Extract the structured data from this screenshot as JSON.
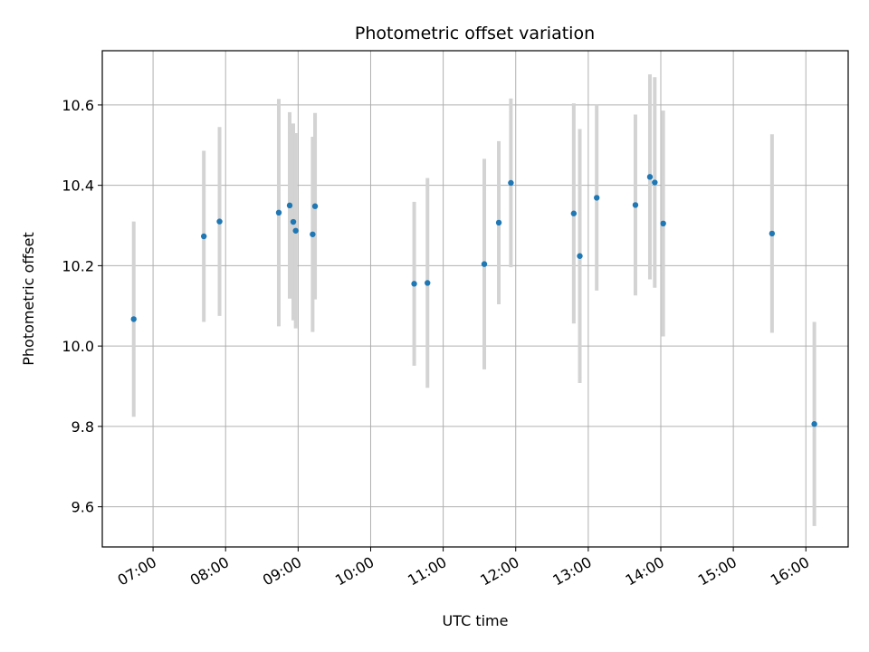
{
  "chart_data": {
    "type": "scatter",
    "title": "Photometric offset variation",
    "xlabel": "UTC time",
    "ylabel": "Photometric offset",
    "xlim": [
      "06:18",
      "16:35"
    ],
    "ylim": [
      9.5,
      10.735
    ],
    "grid": true,
    "x_ticks": [
      "07:00",
      "08:00",
      "09:00",
      "10:00",
      "11:00",
      "12:00",
      "13:00",
      "14:00",
      "15:00",
      "16:00"
    ],
    "y_ticks": [
      "9.6",
      "9.8",
      "10.0",
      "10.2",
      "10.4",
      "10.6"
    ],
    "colors": {
      "point": "#1f77b4",
      "errorbar": "#d3d3d3",
      "grid": "#b0b0b0"
    },
    "series": [
      {
        "points": [
          {
            "x": "06:44",
            "y": 10.067,
            "yerr": 0.243
          },
          {
            "x": "07:42",
            "y": 10.273,
            "yerr": 0.213
          },
          {
            "x": "07:55",
            "y": 10.31,
            "yerr": 0.235
          },
          {
            "x": "08:44",
            "y": 10.332,
            "yerr": 0.283
          },
          {
            "x": "08:53",
            "y": 10.35,
            "yerr": 0.232
          },
          {
            "x": "08:56",
            "y": 10.309,
            "yerr": 0.245
          },
          {
            "x": "08:58",
            "y": 10.287,
            "yerr": 0.243
          },
          {
            "x": "09:12",
            "y": 10.278,
            "yerr": 0.243
          },
          {
            "x": "09:14",
            "y": 10.348,
            "yerr": 0.232
          },
          {
            "x": "10:36",
            "y": 10.155,
            "yerr": 0.204
          },
          {
            "x": "10:47",
            "y": 10.157,
            "yerr": 0.261
          },
          {
            "x": "11:34",
            "y": 10.204,
            "yerr": 0.262
          },
          {
            "x": "11:46",
            "y": 10.307,
            "yerr": 0.203
          },
          {
            "x": "11:56",
            "y": 10.406,
            "yerr": 0.21
          },
          {
            "x": "12:48",
            "y": 10.33,
            "yerr": 0.274
          },
          {
            "x": "12:53",
            "y": 10.224,
            "yerr": 0.316
          },
          {
            "x": "13:07",
            "y": 10.369,
            "yerr": 0.231
          },
          {
            "x": "13:39",
            "y": 10.351,
            "yerr": 0.225
          },
          {
            "x": "13:51",
            "y": 10.421,
            "yerr": 0.255
          },
          {
            "x": "13:55",
            "y": 10.407,
            "yerr": 0.262
          },
          {
            "x": "14:02",
            "y": 10.305,
            "yerr": 0.281
          },
          {
            "x": "15:32",
            "y": 10.28,
            "yerr": 0.247
          },
          {
            "x": "16:07",
            "y": 9.806,
            "yerr": 0.254
          }
        ]
      }
    ]
  }
}
